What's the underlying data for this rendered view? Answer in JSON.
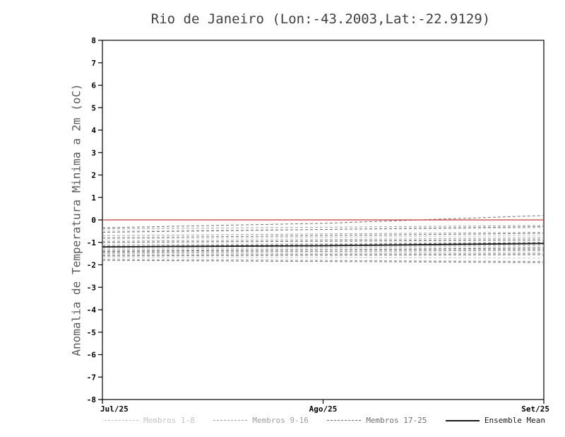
{
  "colors": {
    "axis": "#000000",
    "title_text": "#3f3f3f",
    "ylabel_text": "#5a5a5a",
    "zero_line": "#e03434"
  },
  "chart_data": {
    "type": "line",
    "title": "Rio de Janeiro (Lon:-43.2003,Lat:-22.9129)",
    "xlabel": "",
    "ylabel": "Anomalia de Temperatura Minima a 2m (oC)",
    "ylim": [
      -8,
      8
    ],
    "ytick_step": 1,
    "x_ticklabels": [
      "Jul/25",
      "Ago/25",
      "Set/25"
    ],
    "x_positions": [
      0,
      0.5,
      1
    ],
    "grid": false,
    "legend_position": "bottom",
    "zero_line": {
      "y": 0,
      "color": "#e03434"
    },
    "groups": [
      {
        "name": "Membros 1-8",
        "color": "#c3c3c3",
        "style": "dashed"
      },
      {
        "name": "Membros 9-16",
        "color": "#9e9e9e",
        "style": "dashed"
      },
      {
        "name": "Membros 17-25",
        "color": "#6f6f6f",
        "style": "dashed"
      },
      {
        "name": "Ensemble Mean",
        "color": "#1a1a1a",
        "style": "solid"
      }
    ],
    "members": [
      {
        "group": 0,
        "y": [
          -0.5,
          -0.35
        ]
      },
      {
        "group": 0,
        "y": [
          -0.85,
          -0.7
        ]
      },
      {
        "group": 0,
        "y": [
          -1.1,
          -1.0
        ]
      },
      {
        "group": 0,
        "y": [
          -1.3,
          -1.2
        ]
      },
      {
        "group": 0,
        "y": [
          -1.5,
          -1.45
        ]
      },
      {
        "group": 0,
        "y": [
          -1.65,
          -1.7
        ]
      },
      {
        "group": 0,
        "y": [
          -1.0,
          -0.85
        ]
      },
      {
        "group": 0,
        "y": [
          -1.25,
          -1.15
        ]
      },
      {
        "group": 1,
        "y": [
          -0.4,
          -0.25
        ]
      },
      {
        "group": 1,
        "y": [
          -0.7,
          -0.55
        ]
      },
      {
        "group": 1,
        "y": [
          -0.95,
          -0.8
        ]
      },
      {
        "group": 1,
        "y": [
          -1.15,
          -1.05
        ]
      },
      {
        "group": 1,
        "y": [
          -1.35,
          -1.3
        ]
      },
      {
        "group": 1,
        "y": [
          -1.55,
          -1.5
        ]
      },
      {
        "group": 1,
        "y": [
          -1.75,
          -1.85
        ]
      },
      {
        "group": 1,
        "y": [
          -1.2,
          -1.1
        ]
      },
      {
        "group": 2,
        "y": [
          -0.35,
          -0.15,
          0.2
        ]
      },
      {
        "group": 2,
        "y": [
          -0.55,
          -0.3
        ]
      },
      {
        "group": 2,
        "y": [
          -0.8,
          -0.6
        ]
      },
      {
        "group": 2,
        "y": [
          -1.0,
          -0.9
        ]
      },
      {
        "group": 2,
        "y": [
          -1.2,
          -1.0
        ]
      },
      {
        "group": 2,
        "y": [
          -1.4,
          -1.25
        ]
      },
      {
        "group": 2,
        "y": [
          -1.6,
          -1.55
        ]
      },
      {
        "group": 2,
        "y": [
          -1.8,
          -1.9
        ]
      },
      {
        "group": 2,
        "y": [
          -1.45,
          -1.35
        ]
      }
    ],
    "ensemble_mean": {
      "y": [
        -1.2,
        -1.15,
        -1.05
      ]
    }
  }
}
